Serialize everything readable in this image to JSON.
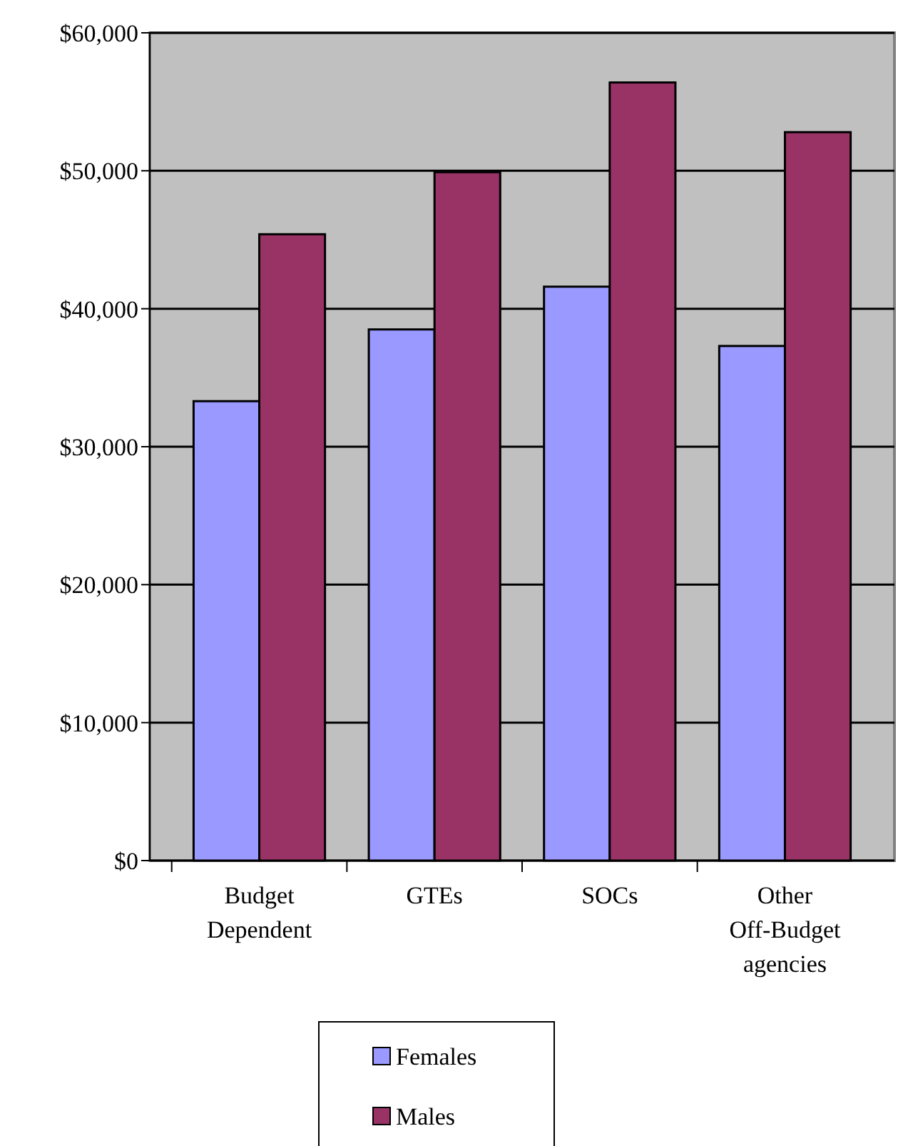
{
  "chart_data": {
    "type": "bar",
    "categories": [
      "Budget Dependent",
      "GTEs",
      "SOCs",
      "Other Off-Budget agencies"
    ],
    "series": [
      {
        "name": "Females",
        "color": "#9999ff",
        "values": [
          33300,
          38500,
          41600,
          37300
        ]
      },
      {
        "name": "Males",
        "color": "#993366",
        "values": [
          45400,
          49900,
          56400,
          52800
        ]
      }
    ],
    "ylim": [
      0,
      60000
    ],
    "yticks": [
      {
        "value": 0,
        "label": "$0"
      },
      {
        "value": 10000,
        "label": "$10,000"
      },
      {
        "value": 20000,
        "label": "$20,000"
      },
      {
        "value": 30000,
        "label": "$30,000"
      },
      {
        "value": 40000,
        "label": "$40,000"
      },
      {
        "value": 50000,
        "label": "$50,000"
      },
      {
        "value": 60000,
        "label": "$60,000"
      }
    ],
    "grid": "y",
    "legend": "bottom"
  }
}
